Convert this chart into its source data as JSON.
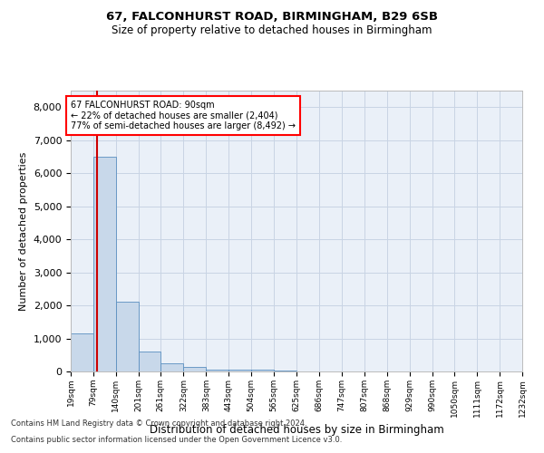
{
  "title1": "67, FALCONHURST ROAD, BIRMINGHAM, B29 6SB",
  "title2": "Size of property relative to detached houses in Birmingham",
  "xlabel": "Distribution of detached houses by size in Birmingham",
  "ylabel": "Number of detached properties",
  "footnote1": "Contains HM Land Registry data © Crown copyright and database right 2024.",
  "footnote2": "Contains public sector information licensed under the Open Government Licence v3.0.",
  "property_size": 90,
  "property_label": "67 FALCONHURST ROAD: 90sqm",
  "annotation_line1": "← 22% of detached houses are smaller (2,404)",
  "annotation_line2": "77% of semi-detached houses are larger (8,492) →",
  "bar_color": "#c8d8ea",
  "bar_edge_color": "#5a8fc0",
  "highlight_color": "#cc0000",
  "grid_color": "#c8d4e4",
  "bg_color": "#eaf0f8",
  "bin_edges": [
    19,
    79,
    140,
    201,
    261,
    322,
    383,
    443,
    504,
    565,
    625,
    686,
    747,
    807,
    868,
    929,
    990,
    1050,
    1111,
    1172,
    1232
  ],
  "bar_heights": [
    1150,
    6500,
    2100,
    600,
    260,
    130,
    65,
    55,
    45,
    35,
    10,
    0,
    0,
    0,
    0,
    0,
    0,
    0,
    0,
    0
  ],
  "ylim": [
    0,
    8500
  ],
  "yticks": [
    0,
    1000,
    2000,
    3000,
    4000,
    5000,
    6000,
    7000,
    8000
  ]
}
